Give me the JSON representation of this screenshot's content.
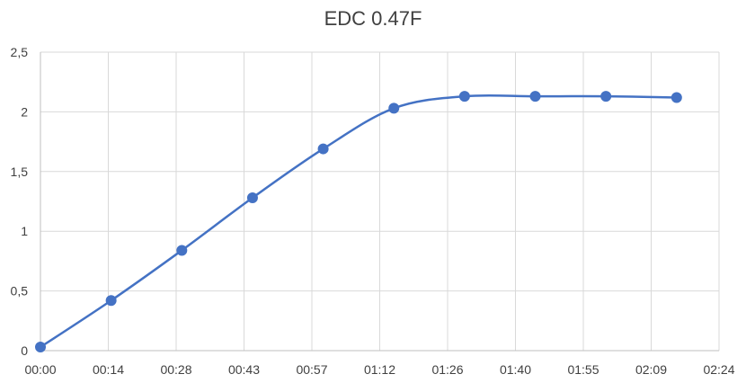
{
  "chart_data": {
    "type": "line",
    "title": "EDC 0.47F",
    "xlabel": "",
    "ylabel": "",
    "x_ticks": [
      "00:00",
      "00:14",
      "00:28",
      "00:43",
      "00:57",
      "01:12",
      "01:26",
      "01:40",
      "01:55",
      "02:09",
      "02:24"
    ],
    "y_ticks": [
      "0",
      "0,5",
      "1",
      "1,5",
      "2",
      "2,5"
    ],
    "ylim": [
      0,
      2.5
    ],
    "x_unit_range_seconds": [
      0,
      144
    ],
    "grid": true,
    "legend": "none",
    "smooth": true,
    "series": [
      {
        "color": "#4472C4",
        "x_seconds": [
          0,
          15,
          30,
          45,
          60,
          75,
          90,
          105,
          120,
          135
        ],
        "values": [
          0.03,
          0.42,
          0.84,
          1.28,
          1.69,
          2.03,
          2.13,
          2.13,
          2.13,
          2.12
        ]
      }
    ]
  }
}
